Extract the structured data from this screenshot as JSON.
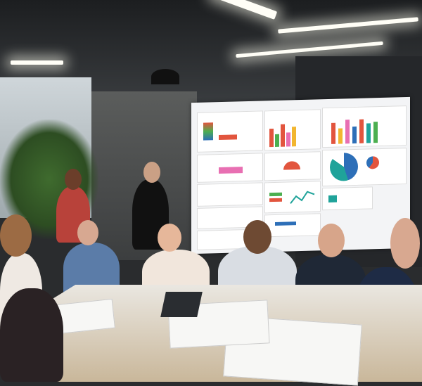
{
  "scene": {
    "description_tags": [
      "office",
      "meeting",
      "presentation-board",
      "people",
      "table"
    ],
    "colors": {
      "ceiling": "#1c1e20",
      "board": "#f3f4f6",
      "table": "#eae7e1",
      "chart_red": "#e2553e",
      "chart_teal": "#1fa39a",
      "chart_blue": "#2d6fb8",
      "chart_green": "#4caf50",
      "chart_pink": "#e86fb2",
      "chart_yellow": "#f2b630"
    }
  }
}
